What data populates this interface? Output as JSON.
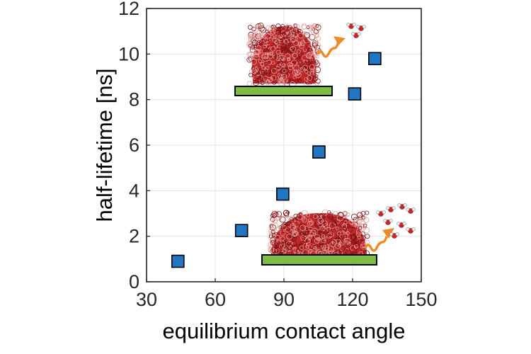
{
  "chart_data": {
    "type": "scatter",
    "xlabel": "equilibrium contact angle",
    "ylabel": "half-lifetime [ns]",
    "xlim": [
      30,
      150
    ],
    "ylim": [
      0,
      12
    ],
    "x_ticks": [
      "30",
      "60",
      "90",
      "120",
      "150"
    ],
    "y_ticks": [
      "0",
      "2",
      "4",
      "6",
      "8",
      "10",
      "12"
    ],
    "grid": true,
    "legend": "none",
    "series": [
      {
        "marker": "square",
        "color": "#1f77c4",
        "points": [
          {
            "x": 43.7,
            "y": 0.9
          },
          {
            "x": 71.5,
            "y": 2.25
          },
          {
            "x": 89.5,
            "y": 3.85
          },
          {
            "x": 105.3,
            "y": 5.7
          },
          {
            "x": 120.9,
            "y": 8.25
          },
          {
            "x": 129.7,
            "y": 9.8
          }
        ]
      }
    ],
    "insets": [
      {
        "name": "high-contact-angle-droplet",
        "depicts": "droplet-on-substrate",
        "contact_angle": "high"
      },
      {
        "name": "low-contact-angle-droplet",
        "depicts": "droplet-on-substrate",
        "contact_angle": "low"
      }
    ],
    "colors": {
      "marker_fill": "#1f77c4",
      "substrate": "#7dbd42",
      "droplet": "#c0282a",
      "evaporation_arrow": "#f08a24"
    }
  }
}
